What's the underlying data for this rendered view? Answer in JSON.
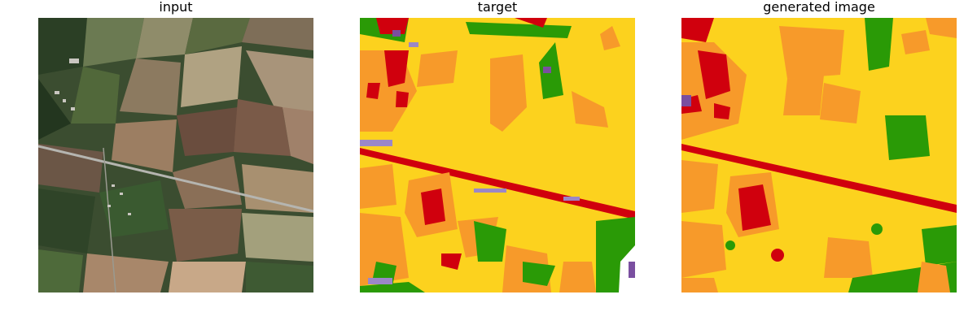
{
  "panels": [
    {
      "title": "input"
    },
    {
      "title": "target"
    },
    {
      "title": "generated image"
    }
  ],
  "colors": {
    "dark_green": "#1f3d1f",
    "forest": "#2e4a2a",
    "field_tan": "#8b7a5c",
    "field_brown": "#6b4e3d",
    "field_light": "#a59a78",
    "field_green": "#5e6e44",
    "road_gray": "#9a9a9a",
    "yellow": "#fcd21e",
    "orange": "#f79a2a",
    "red": "#d0000d",
    "green": "#2a9a06",
    "purple": "#7a4fa0",
    "lavender": "#9b87c7"
  }
}
